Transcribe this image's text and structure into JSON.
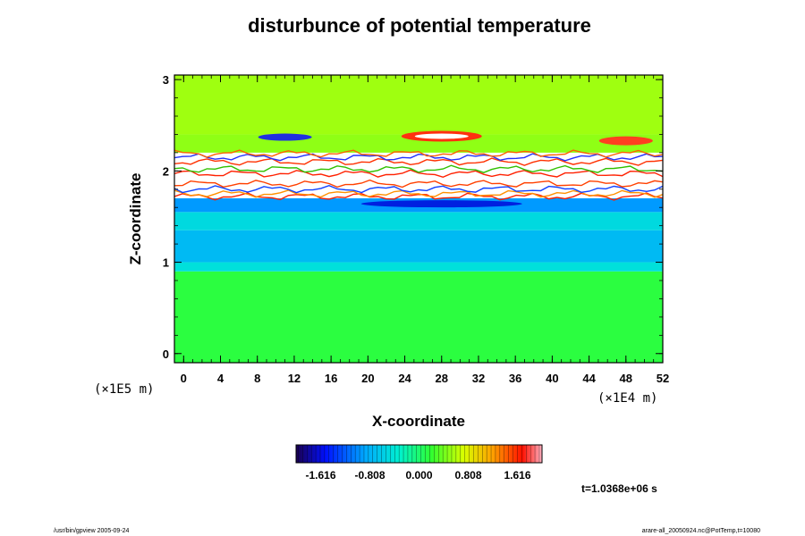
{
  "chart_data": {
    "type": "heatmap",
    "title": "disturbunce of potential temperature",
    "xlabel": "X-coordinate",
    "ylabel": "Z-coordinate",
    "x_unit": "(×1E4 m)",
    "y_unit": "(×1E5 m)",
    "xlim": [
      -1,
      52
    ],
    "ylim": [
      -0.1,
      3.05
    ],
    "x_ticks": [
      "0",
      "4",
      "8",
      "12",
      "16",
      "20",
      "24",
      "28",
      "32",
      "36",
      "40",
      "44",
      "48",
      "52"
    ],
    "y_ticks": [
      "0",
      "1",
      "2",
      "3"
    ],
    "x_tick_values": [
      0,
      4,
      8,
      12,
      16,
      20,
      24,
      28,
      32,
      36,
      40,
      44,
      48,
      52
    ],
    "y_tick_values": [
      0,
      1,
      2,
      3
    ],
    "colorbar": {
      "ticks": [
        "-1.616",
        "-0.808",
        "0.000",
        "0.808",
        "1.616"
      ],
      "tick_values": [
        -1.616,
        -0.808,
        0.0,
        0.808,
        1.616
      ],
      "range": [
        -2.02,
        2.02
      ]
    },
    "bands": [
      {
        "z_from": -0.1,
        "z_to": 0.9,
        "value": 0.15
      },
      {
        "z_from": 0.9,
        "z_to": 1.0,
        "value": -0.45
      },
      {
        "z_from": 1.0,
        "z_to": 1.35,
        "value": -0.75
      },
      {
        "z_from": 1.35,
        "z_to": 1.55,
        "value": -0.5
      },
      {
        "z_from": 1.55,
        "z_to": 1.7,
        "value": -0.95
      },
      {
        "z_from": 1.7,
        "z_to": 2.2,
        "value": "saturated"
      },
      {
        "z_from": 2.2,
        "z_to": 2.4,
        "value": 0.5
      },
      {
        "z_from": 2.4,
        "z_to": 3.05,
        "value": 0.55
      }
    ],
    "time": "t=1.0368e+06 s"
  },
  "footer": {
    "left": "/usr/bin/gpview 2005-09-24",
    "right": "arare-all_20050924.nc@PotTemp,t=10080"
  }
}
